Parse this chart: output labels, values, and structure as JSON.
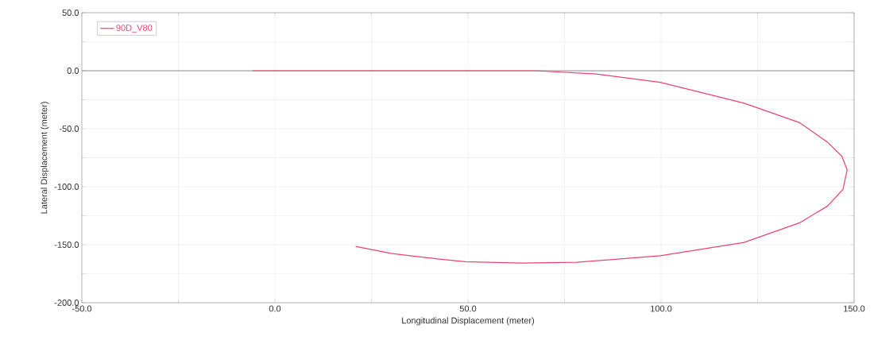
{
  "chart_data": {
    "type": "line",
    "xlabel": "Longitudinal Displacement (meter)",
    "ylabel": "Lateral Displacement (meter)",
    "xlim": [
      -50,
      150
    ],
    "ylim": [
      -200,
      50
    ],
    "xticks": [
      {
        "value": -50,
        "label": "-50.0"
      },
      {
        "value": -25,
        "label": null
      },
      {
        "value": 0,
        "label": "0.0"
      },
      {
        "value": 25,
        "label": null
      },
      {
        "value": 50,
        "label": "50.0"
      },
      {
        "value": 75,
        "label": null
      },
      {
        "value": 100,
        "label": "100.0"
      },
      {
        "value": 125,
        "label": null
      },
      {
        "value": 150,
        "label": "150.0"
      }
    ],
    "yticks": [
      {
        "value": -200,
        "label": "-200.0"
      },
      {
        "value": -175,
        "label": null
      },
      {
        "value": -150,
        "label": "-150.0"
      },
      {
        "value": -125,
        "label": null
      },
      {
        "value": -100,
        "label": "-100.0"
      },
      {
        "value": -75,
        "label": null
      },
      {
        "value": -50,
        "label": "-50.0"
      },
      {
        "value": -25,
        "label": null
      },
      {
        "value": 0,
        "label": "0.0"
      },
      {
        "value": 25,
        "label": null
      },
      {
        "value": 50,
        "label": "50.0"
      }
    ],
    "grid": true,
    "legend": "top left",
    "marker": "none",
    "line_style": "solid",
    "ref_lines": [
      {
        "axis": "y",
        "value": 0,
        "color": "#808080"
      }
    ],
    "series": [
      {
        "name": "90D_V80",
        "color": "#e8456e",
        "x": [
          -5.8,
          67.3,
          83.2,
          99.8,
          121.5,
          135.9,
          143.1,
          146.8,
          148.2,
          147.1,
          143.1,
          135.9,
          121.5,
          99.8,
          78.1,
          63.7,
          49.3,
          42.1,
          30.0,
          20.9
        ],
        "values": [
          0,
          0,
          -2.8,
          -10.0,
          -28.0,
          -44.8,
          -61.6,
          -73.6,
          -85.5,
          -102.4,
          -116.7,
          -131.1,
          -148.0,
          -159.5,
          -165.2,
          -165.9,
          -164.7,
          -162.3,
          -157.5,
          -151.5
        ]
      }
    ]
  }
}
